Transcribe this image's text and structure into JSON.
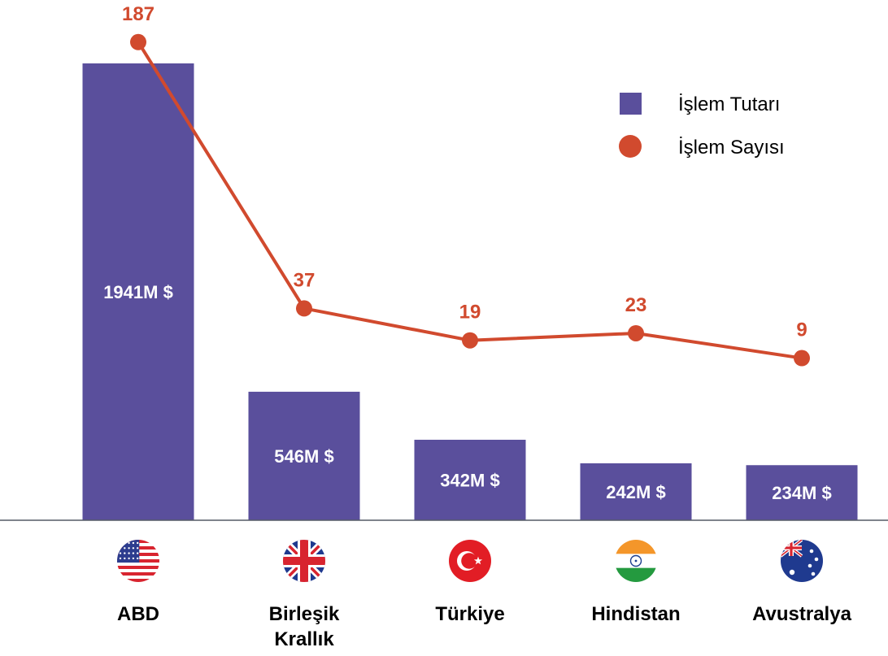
{
  "chart_data": {
    "type": "bar",
    "categories": [
      "ABD",
      "Birleşik Krallık",
      "Türkiye",
      "Hindistan",
      "Avustralya"
    ],
    "category_lines": [
      [
        "ABD"
      ],
      [
        "Birleşik",
        "Krallık"
      ],
      [
        "Türkiye"
      ],
      [
        "Hindistan"
      ],
      [
        "Avustralya"
      ]
    ],
    "flags": [
      "us-flag-icon",
      "uk-flag-icon",
      "turkey-flag-icon",
      "india-flag-icon",
      "australia-flag-icon"
    ],
    "series": [
      {
        "name": "İşlem Tutarı",
        "type": "bar",
        "values": [
          1941,
          546,
          342,
          242,
          234
        ],
        "labels": [
          "1941M $",
          "546M $",
          "342M $",
          "242M $",
          "234M $"
        ],
        "color": "#5a4f9c"
      },
      {
        "name": "İşlem Sayısı",
        "type": "line",
        "values": [
          187,
          37,
          19,
          23,
          9
        ],
        "labels": [
          "187",
          "37",
          "19",
          "23",
          "9"
        ],
        "color": "#d14a2e"
      }
    ],
    "legend_position": "top-right",
    "grid": false
  }
}
